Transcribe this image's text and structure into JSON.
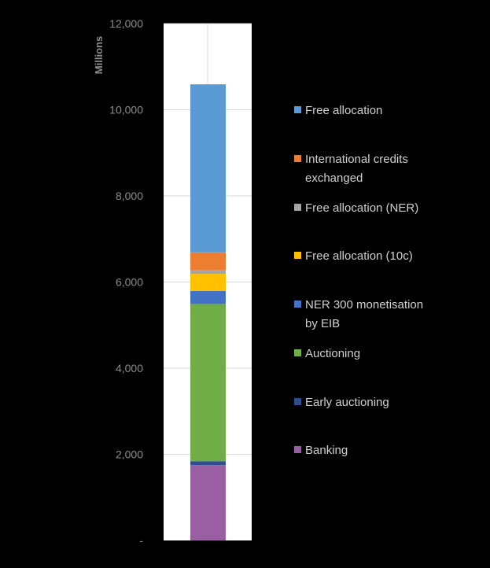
{
  "chart_data": {
    "type": "bar",
    "stacked": true,
    "categories": [
      ""
    ],
    "ylabel": "Millions",
    "ylim": [
      0,
      12000
    ],
    "yticks": [
      0,
      2000,
      4000,
      6000,
      8000,
      10000,
      12000
    ],
    "ytick_labels": [
      "-",
      "2,000",
      "4,000",
      "6,000",
      "8,000",
      "10,000",
      "12,000"
    ],
    "grid": true,
    "legend_position": "right",
    "series": [
      {
        "name": "Banking",
        "values": [
          1750
        ],
        "color": "#9a5fa3"
      },
      {
        "name": "Early auctioning",
        "values": [
          90
        ],
        "color": "#2e4f8f"
      },
      {
        "name": "Auctioning",
        "values": [
          3650
        ],
        "color": "#70ad47"
      },
      {
        "name": "NER 300 monetisation by EIB",
        "values": [
          300
        ],
        "color": "#4472c4"
      },
      {
        "name": "Free allocation (10c)",
        "values": [
          400
        ],
        "color": "#ffc000"
      },
      {
        "name": "Free allocation (NER)",
        "values": [
          80
        ],
        "color": "#a5a5a5"
      },
      {
        "name": "International credits exchanged",
        "values": [
          420
        ],
        "color": "#ed7d31"
      },
      {
        "name": "Free allocation",
        "values": [
          3900
        ],
        "color": "#5b9bd5"
      }
    ],
    "legend_lines": [
      [
        "Free allocation"
      ],
      [
        "International credits",
        "exchanged"
      ],
      [
        "Free allocation (NER)"
      ],
      [
        "Free allocation (10c)"
      ],
      [
        "NER 300 monetisation",
        "by EIB"
      ],
      [
        "Auctioning"
      ],
      [
        "Early auctioning"
      ],
      [
        "Banking"
      ]
    ]
  }
}
